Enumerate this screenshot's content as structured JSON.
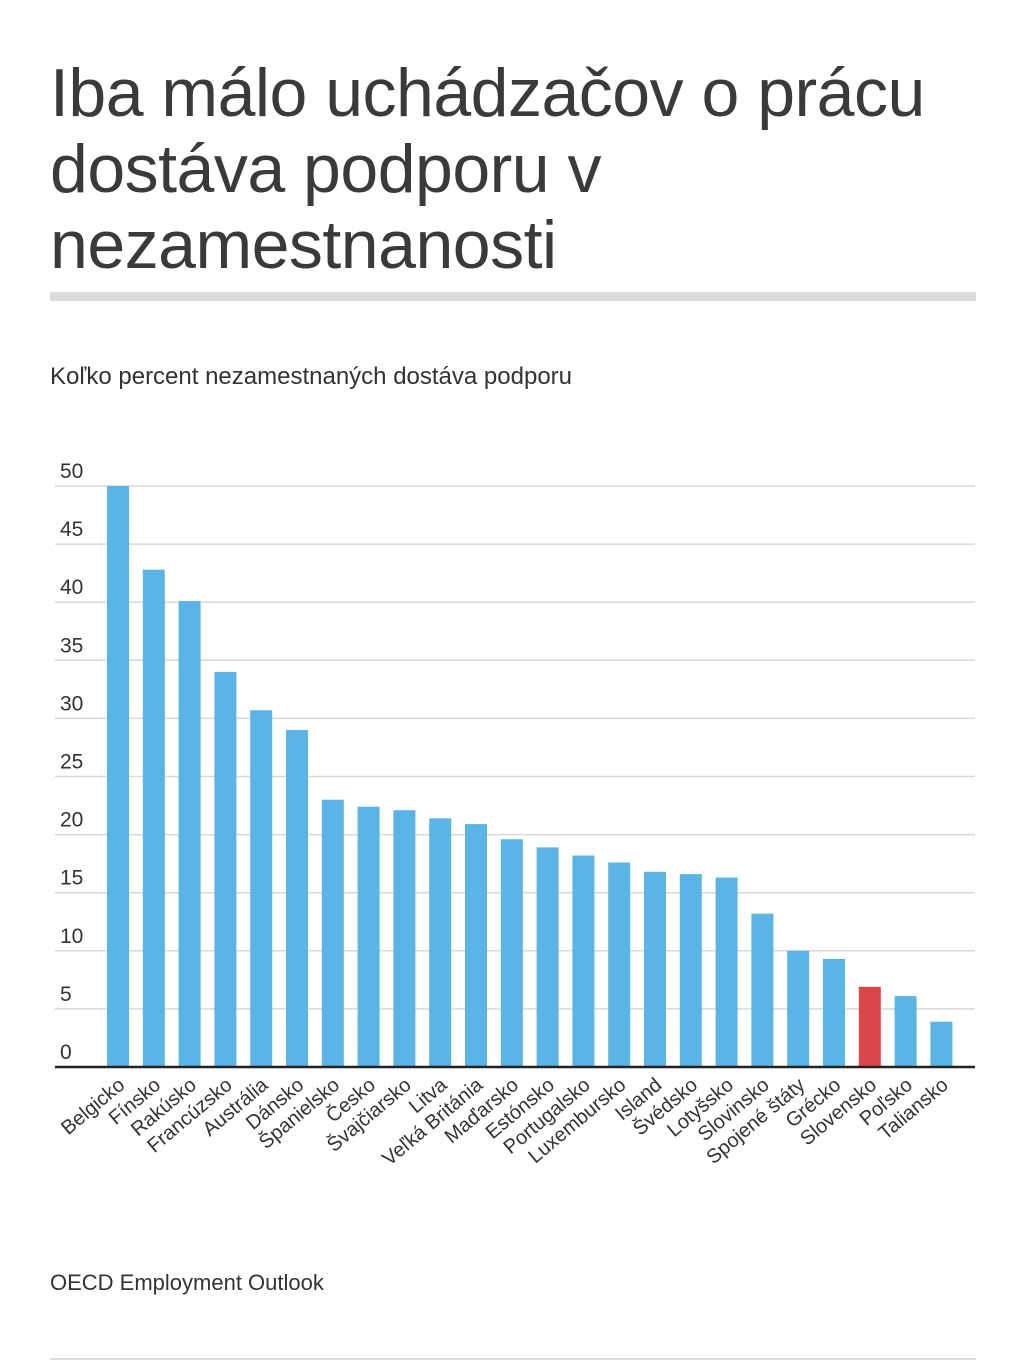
{
  "title": "Iba málo uchádzačov o prácu dostáva podporu v nezamestnanosti",
  "subtitle": "Koľko percent nezamestnaných dostáva podporu",
  "source": "OECD Employment Outlook",
  "colors": {
    "bar": "#5ab4e5",
    "highlight": "#d9474a",
    "grid": "#d9d9d9",
    "axis": "#222222",
    "text": "#333333"
  },
  "chart_data": {
    "type": "bar",
    "title": "Koľko percent nezamestnaných dostáva podporu",
    "xlabel": "",
    "ylabel": "",
    "ylim": [
      0,
      50
    ],
    "yticks": [
      0,
      5,
      10,
      15,
      20,
      25,
      30,
      35,
      40,
      45,
      50
    ],
    "grid": true,
    "highlight_category": "Slovensko",
    "categories": [
      "Belgicko",
      "Fínsko",
      "Rakúsko",
      "Francúzsko",
      "Austrália",
      "Dánsko",
      "Španielsko",
      "Česko",
      "Švajčiarsko",
      "Litva",
      "Veľká Británia",
      "Maďarsko",
      "Estónsko",
      "Portugalsko",
      "Luxembursko",
      "Island",
      "Švédsko",
      "Lotyšsko",
      "Slovinsko",
      "Spojené štáty",
      "Grécko",
      "Slovensko",
      "Poľsko",
      "Taliansko"
    ],
    "values": [
      50,
      42.8,
      40.1,
      34,
      30.7,
      29,
      23,
      22.4,
      22.1,
      21.4,
      20.9,
      19.6,
      18.9,
      18.2,
      17.6,
      16.8,
      16.6,
      16.3,
      13.2,
      10,
      9.3,
      6.9,
      6.1,
      3.9
    ]
  }
}
